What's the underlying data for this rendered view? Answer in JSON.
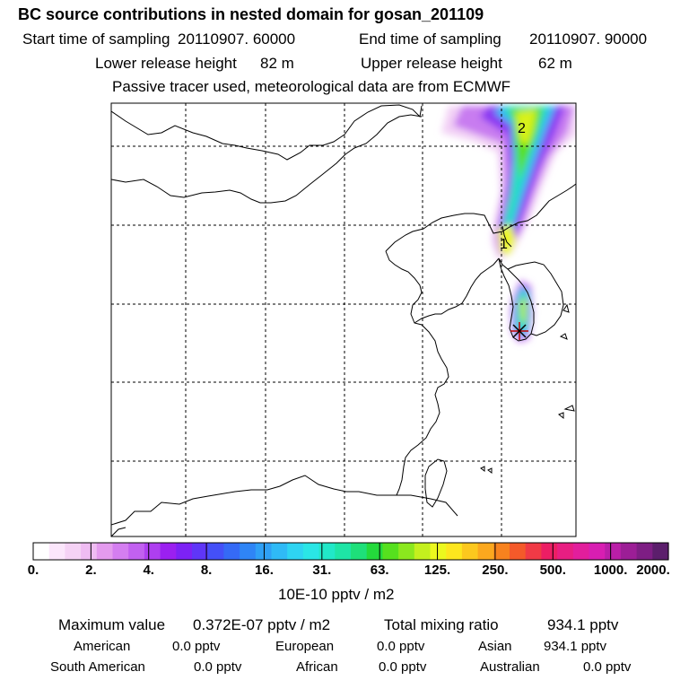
{
  "header": {
    "title": "BC  source contributions in nested domain for gosan_201109",
    "start_label": "Start time of sampling",
    "start_value": "20110907. 60000",
    "end_label": "End time of sampling",
    "end_value": "20110907. 90000",
    "lower_label": "Lower release height",
    "lower_value": "82 m",
    "upper_label": "Upper release height",
    "upper_value": "62 m",
    "tracer_note": "Passive tracer used, meteorological data are from ECMWF"
  },
  "map": {
    "plume_markers": [
      "1",
      "2"
    ],
    "receptor_icon": "receptor-star-icon"
  },
  "colorbar": {
    "labels": [
      "0.",
      "2.",
      "4.",
      "8.",
      "16.",
      "31.",
      "63.",
      "125.",
      "250.",
      "500.",
      "1000.",
      "2000."
    ],
    "units": "10E-10 pptv / m2",
    "colors": [
      "#ffffff",
      "#fbe6fb",
      "#f5d2f5",
      "#efbcf2",
      "#e49bee",
      "#d47ef0",
      "#c261f0",
      "#ae3ff0",
      "#9b20f0",
      "#7d22f5",
      "#5f36f8",
      "#4450f8",
      "#356af6",
      "#2f85f6",
      "#2fa0f6",
      "#2fbaf6",
      "#2ed4f2",
      "#2ae6e6",
      "#21e8c8",
      "#1ee5a6",
      "#1ee07a",
      "#24da3c",
      "#56e01e",
      "#8be81e",
      "#c4f01e",
      "#ecf81e",
      "#fde61e",
      "#fcc81e",
      "#fba81e",
      "#f8821e",
      "#f45a2a",
      "#f03a46",
      "#ec1e64",
      "#e81e82",
      "#e21e9c",
      "#d81eb2",
      "#ba1ea8",
      "#9c1e96",
      "#7e1e84",
      "#5c1e6c"
    ]
  },
  "footer": {
    "max_label": "Maximum value",
    "max_value": "0.372E-07 pptv / m2",
    "total_label": "Total mixing ratio",
    "total_value": "934.1 pptv",
    "regions": [
      {
        "name": "American",
        "value": "0.0 pptv"
      },
      {
        "name": "European",
        "value": "0.0 pptv"
      },
      {
        "name": "Asian",
        "value": "934.1 pptv"
      },
      {
        "name": "South American",
        "value": "0.0 pptv"
      },
      {
        "name": "African",
        "value": "0.0 pptv"
      },
      {
        "name": "Australian",
        "value": "0.0 pptv"
      }
    ]
  }
}
